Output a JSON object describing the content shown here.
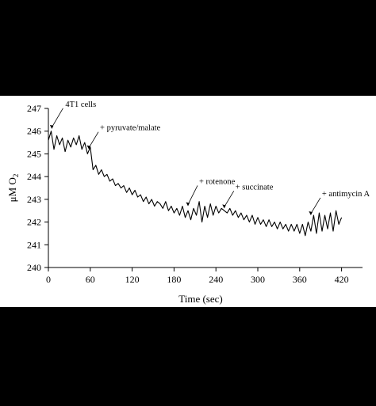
{
  "chart_data": {
    "type": "line",
    "xlabel": "Time (sec)",
    "ylabel": "μM O",
    "ylabel_subscript": "2",
    "xlim": [
      0,
      450
    ],
    "ylim": [
      240,
      247
    ],
    "x_ticks": [
      0,
      60,
      120,
      180,
      240,
      300,
      360,
      420
    ],
    "y_ticks": [
      240,
      241,
      242,
      243,
      244,
      245,
      246,
      247
    ],
    "grid": false,
    "line_color": "#000000",
    "series": [
      {
        "x": [
          0,
          4,
          8,
          12,
          16,
          20,
          24,
          28,
          32,
          36,
          40,
          44,
          48,
          52,
          56,
          60,
          64,
          68,
          72,
          76,
          80,
          84,
          88,
          92,
          96,
          100,
          104,
          108,
          112,
          116,
          120,
          124,
          128,
          132,
          136,
          140,
          144,
          148,
          152,
          156,
          160,
          164,
          168,
          172,
          176,
          180,
          184,
          188,
          192,
          196,
          200,
          204,
          208,
          212,
          216,
          220,
          224,
          228,
          232,
          236,
          240,
          244,
          248,
          252,
          256,
          260,
          264,
          268,
          272,
          276,
          280,
          284,
          288,
          292,
          296,
          300,
          304,
          308,
          312,
          316,
          320,
          324,
          328,
          332,
          336,
          340,
          344,
          348,
          352,
          356,
          360,
          364,
          368,
          372,
          376,
          380,
          384,
          388,
          392,
          396,
          400,
          404,
          408,
          412,
          416,
          420
        ],
        "values": [
          245.6,
          246.0,
          245.2,
          245.8,
          245.4,
          245.7,
          245.1,
          245.6,
          245.3,
          245.7,
          245.4,
          245.8,
          245.2,
          245.5,
          245.0,
          245.3,
          244.3,
          244.5,
          244.1,
          244.3,
          244.0,
          244.1,
          243.8,
          243.9,
          243.6,
          243.7,
          243.5,
          243.6,
          243.3,
          243.5,
          243.2,
          243.4,
          243.1,
          243.2,
          242.9,
          243.1,
          242.8,
          243.0,
          242.7,
          242.9,
          242.8,
          242.6,
          242.9,
          242.5,
          242.7,
          242.4,
          242.6,
          242.3,
          242.7,
          242.2,
          242.5,
          242.1,
          242.6,
          242.3,
          242.9,
          242.0,
          242.7,
          242.2,
          242.8,
          242.3,
          242.7,
          242.4,
          242.6,
          242.5,
          242.4,
          242.6,
          242.3,
          242.5,
          242.2,
          242.4,
          242.1,
          242.3,
          242.0,
          242.3,
          241.9,
          242.2,
          241.9,
          242.1,
          241.8,
          242.1,
          241.8,
          242.0,
          241.7,
          242.0,
          241.7,
          241.9,
          241.6,
          241.9,
          241.6,
          241.9,
          241.5,
          241.9,
          241.4,
          242.0,
          241.6,
          242.3,
          241.5,
          242.4,
          241.6,
          242.3,
          241.7,
          242.4,
          241.6,
          242.5,
          241.9,
          242.2
        ]
      }
    ],
    "annotations": [
      {
        "text": "4T1 cells",
        "x": 5
      },
      {
        "text": "+ pyruvate/malate",
        "x": 58
      },
      {
        "text": "+ rotenone",
        "x": 200
      },
      {
        "text": "+ succinate",
        "x": 252
      },
      {
        "text": "+ antimycin A",
        "x": 376
      }
    ]
  }
}
